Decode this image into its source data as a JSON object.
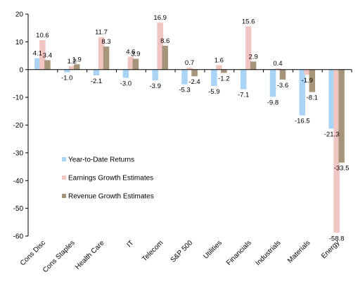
{
  "chart_data": {
    "type": "bar",
    "categories": [
      "Cons Disc",
      "Cons Staples",
      "Health Care",
      "IT",
      "Telecom",
      "S&P 500",
      "Utilities",
      "Financials",
      "Industrials",
      "Materials",
      "Energy"
    ],
    "series": [
      {
        "name": "Year-to-Date Returns",
        "color": "#a9d4f5",
        "values": [
          4.1,
          -1.0,
          -2.1,
          -3.0,
          -3.9,
          -5.3,
          -5.9,
          -7.1,
          -9.8,
          -16.5,
          -21.3
        ],
        "labels": [
          "4.1",
          "-1.0",
          "-2.1",
          "-3.0",
          "-3.9",
          "-5.3",
          "-5.9",
          "-7.1",
          "-9.8",
          "-16.5",
          "-21.3"
        ]
      },
      {
        "name": "Earnings Growth Estimates",
        "color": "#f1c6c2",
        "values": [
          10.6,
          1.2,
          11.7,
          4.6,
          16.9,
          0.7,
          1.6,
          15.6,
          0.4,
          -1.9,
          -58.8
        ],
        "labels": [
          "10.6",
          "1.2",
          "11.7",
          "4.6",
          "16.9",
          "0.7",
          "1.6",
          "15.6",
          "0.4",
          "-1.9",
          "-58.8"
        ]
      },
      {
        "name": "Revenue Growth Estimates",
        "color": "#a6957a",
        "values": [
          3.4,
          1.9,
          8.3,
          3.9,
          8.6,
          -2.4,
          -1.2,
          2.9,
          -3.6,
          -8.1,
          -33.5
        ],
        "labels": [
          "3.4",
          "1.9",
          "8.3",
          "3.9",
          "8.6",
          "-2.4",
          "-1.2",
          "2.9",
          "-3.6",
          "-8.1",
          "-33.5"
        ]
      }
    ],
    "ylim": [
      -60,
      20
    ],
    "yticks": [
      "20",
      "10",
      "0",
      "-10",
      "-20",
      "-30",
      "-40",
      "-50",
      "-60"
    ],
    "ytick_values": [
      20,
      10,
      0,
      -10,
      -20,
      -30,
      -40,
      -50,
      -60
    ],
    "grid": false,
    "legend_position": "lower-left"
  }
}
